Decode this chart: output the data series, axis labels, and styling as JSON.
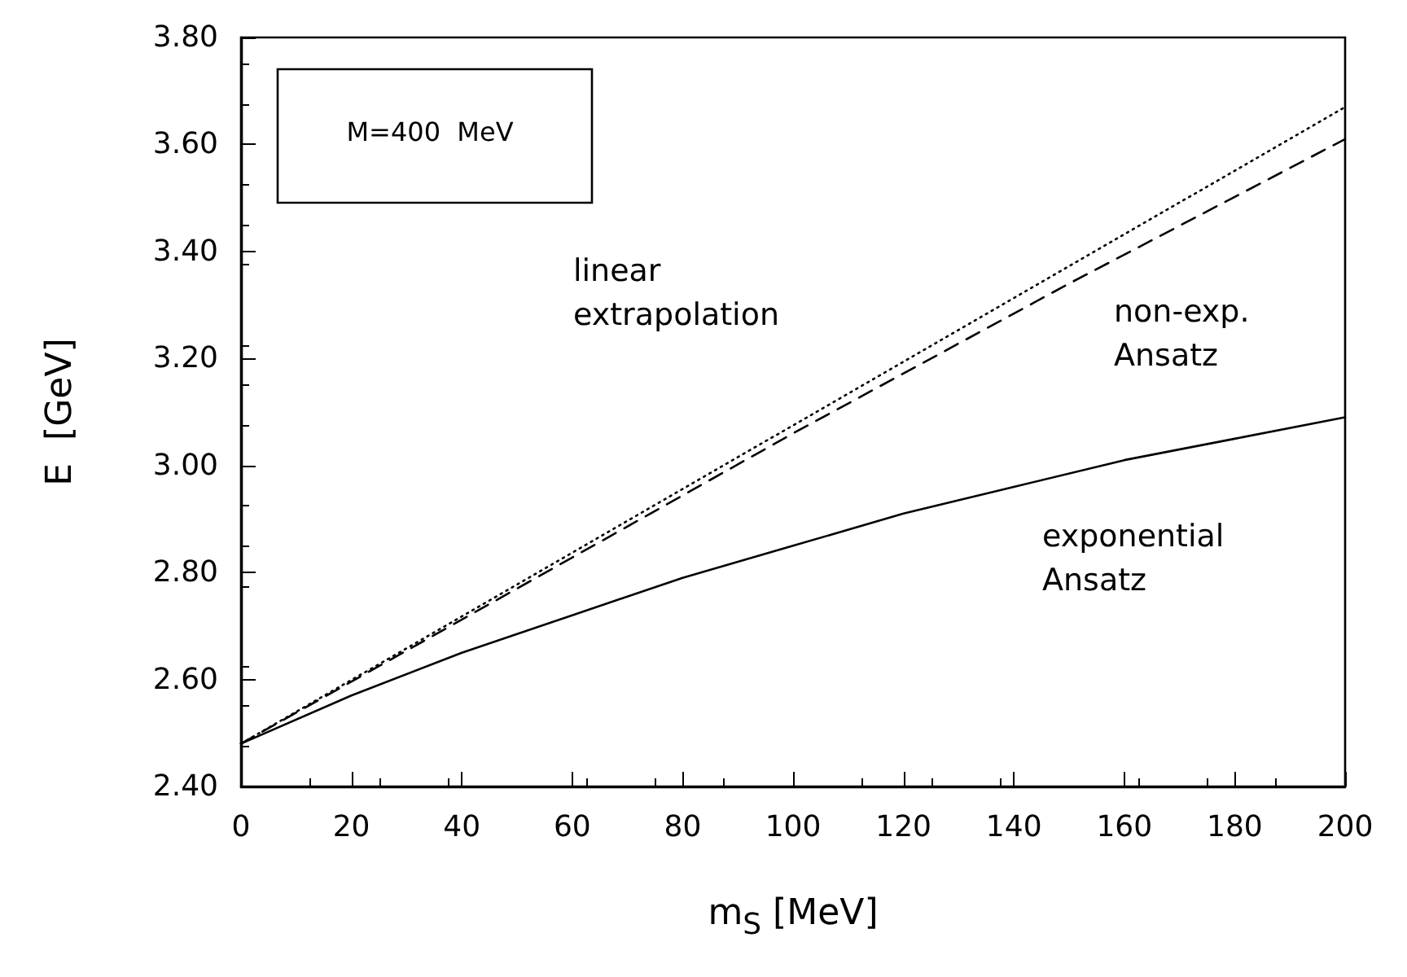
{
  "chart_data": {
    "type": "line",
    "xlabel": "m$_{S}$ [MeV]",
    "ylabel": "E  [GeV]",
    "xlim": [
      0,
      200
    ],
    "xticks": [
      0,
      20,
      40,
      60,
      80,
      100,
      120,
      140,
      160,
      180,
      200
    ],
    "ylim": [
      2.4,
      3.8
    ],
    "yticks": [
      {
        "value": 2.4,
        "label": "2.40"
      },
      {
        "value": 2.6,
        "label": "2.60"
      },
      {
        "value": 2.8,
        "label": "2.80"
      },
      {
        "value": 3.0,
        "label": "3.00"
      },
      {
        "value": 3.2,
        "label": "3.20"
      },
      {
        "value": 3.4,
        "label": "3.40"
      },
      {
        "value": 3.6,
        "label": "3.60"
      },
      {
        "value": 3.8,
        "label": "3.80"
      }
    ],
    "grid": false,
    "marker": "none",
    "series": [
      {
        "color": "#000000",
        "line_style": "dotted",
        "x": [
          0,
          200
        ],
        "values": [
          2.48,
          3.67
        ]
      },
      {
        "color": "#000000",
        "line_style": "dashed",
        "x": [
          0,
          50,
          100,
          150,
          200
        ],
        "values": [
          2.48,
          2.77,
          3.06,
          3.34,
          3.61
        ]
      },
      {
        "color": "#000000",
        "line_style": "solid",
        "x": [
          0,
          20,
          40,
          60,
          80,
          100,
          120,
          140,
          160,
          180,
          200
        ],
        "values": [
          2.48,
          2.57,
          2.65,
          2.72,
          2.79,
          2.85,
          2.91,
          2.96,
          3.01,
          3.05,
          3.09
        ]
      }
    ],
    "annotations": [
      "M=400  MeV",
      "linear\nextrapolation",
      "non-exp.\nAnsatz",
      "exponential\nAnsatz"
    ]
  }
}
